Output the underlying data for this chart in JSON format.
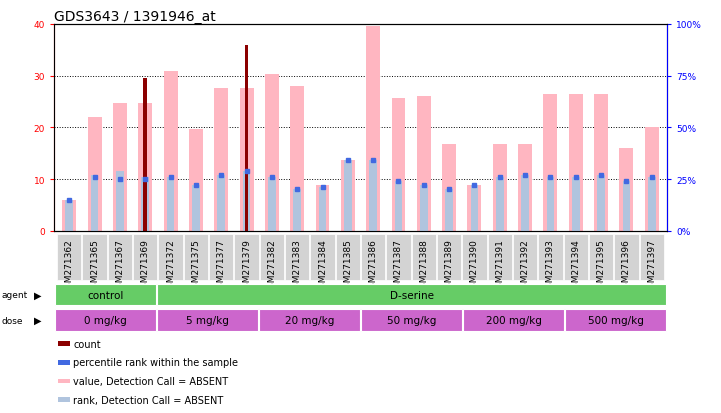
{
  "title": "GDS3643 / 1391946_at",
  "samples": [
    "GSM271362",
    "GSM271365",
    "GSM271367",
    "GSM271369",
    "GSM271372",
    "GSM271375",
    "GSM271377",
    "GSM271379",
    "GSM271382",
    "GSM271383",
    "GSM271384",
    "GSM271385",
    "GSM271386",
    "GSM271387",
    "GSM271388",
    "GSM271389",
    "GSM271390",
    "GSM271391",
    "GSM271392",
    "GSM271393",
    "GSM271394",
    "GSM271395",
    "GSM271396",
    "GSM271397"
  ],
  "count_values": [
    0,
    0,
    0,
    29.5,
    0,
    0,
    0,
    36,
    0,
    0,
    0,
    0,
    0,
    0,
    0,
    0,
    0,
    0,
    0,
    0,
    0,
    0,
    0,
    0
  ],
  "value_bars_pct": [
    15,
    55,
    62,
    62,
    77,
    49,
    69,
    69,
    76,
    70,
    22,
    34,
    99,
    64,
    65,
    42,
    22,
    42,
    42,
    66,
    66,
    66,
    40,
    50
  ],
  "rank_bars_pct": [
    15,
    27,
    29,
    26,
    26,
    22,
    27,
    29,
    26,
    20,
    21,
    34,
    34,
    24,
    22,
    20,
    22,
    26,
    27,
    26,
    26,
    27,
    24,
    26
  ],
  "blue_dots_pct": [
    15,
    26,
    25,
    25,
    26,
    22,
    27,
    29,
    26,
    20,
    21,
    34,
    34,
    24,
    22,
    20,
    22,
    26,
    27,
    26,
    26,
    27,
    24,
    26
  ],
  "count_values_left": [
    0,
    0,
    0,
    29.5,
    0,
    0,
    0,
    36,
    0,
    0,
    0,
    0,
    0,
    0,
    0,
    0,
    0,
    0,
    0,
    0,
    0,
    0,
    0,
    0
  ],
  "ylim_left": [
    0,
    40
  ],
  "ylim_right": [
    0,
    100
  ],
  "yticks_left": [
    0,
    10,
    20,
    30,
    40
  ],
  "yticks_right": [
    0,
    25,
    50,
    75,
    100
  ],
  "value_bar_color": "#FFB6C1",
  "rank_bar_color": "#B0C4DE",
  "count_bar_color": "#8B0000",
  "blue_dot_color": "#4169E1",
  "agent_green": "#66CC66",
  "dose_purple": "#CC66CC",
  "background_color": "#ffffff",
  "title_fontsize": 10,
  "tick_fontsize": 6.5,
  "legend_items": [
    {
      "label": "count",
      "color": "#8B0000"
    },
    {
      "label": "percentile rank within the sample",
      "color": "#4169E1"
    },
    {
      "label": "value, Detection Call = ABSENT",
      "color": "#FFB6C1"
    },
    {
      "label": "rank, Detection Call = ABSENT",
      "color": "#B0C4DE"
    }
  ],
  "agent_groups": [
    {
      "label": "control",
      "n": 4
    },
    {
      "label": "D-serine",
      "n": 20
    }
  ],
  "dose_groups": [
    {
      "label": "0 mg/kg",
      "n": 4
    },
    {
      "label": "5 mg/kg",
      "n": 4
    },
    {
      "label": "20 mg/kg",
      "n": 4
    },
    {
      "label": "50 mg/kg",
      "n": 4
    },
    {
      "label": "200 mg/kg",
      "n": 4
    },
    {
      "label": "500 mg/kg",
      "n": 4
    }
  ]
}
